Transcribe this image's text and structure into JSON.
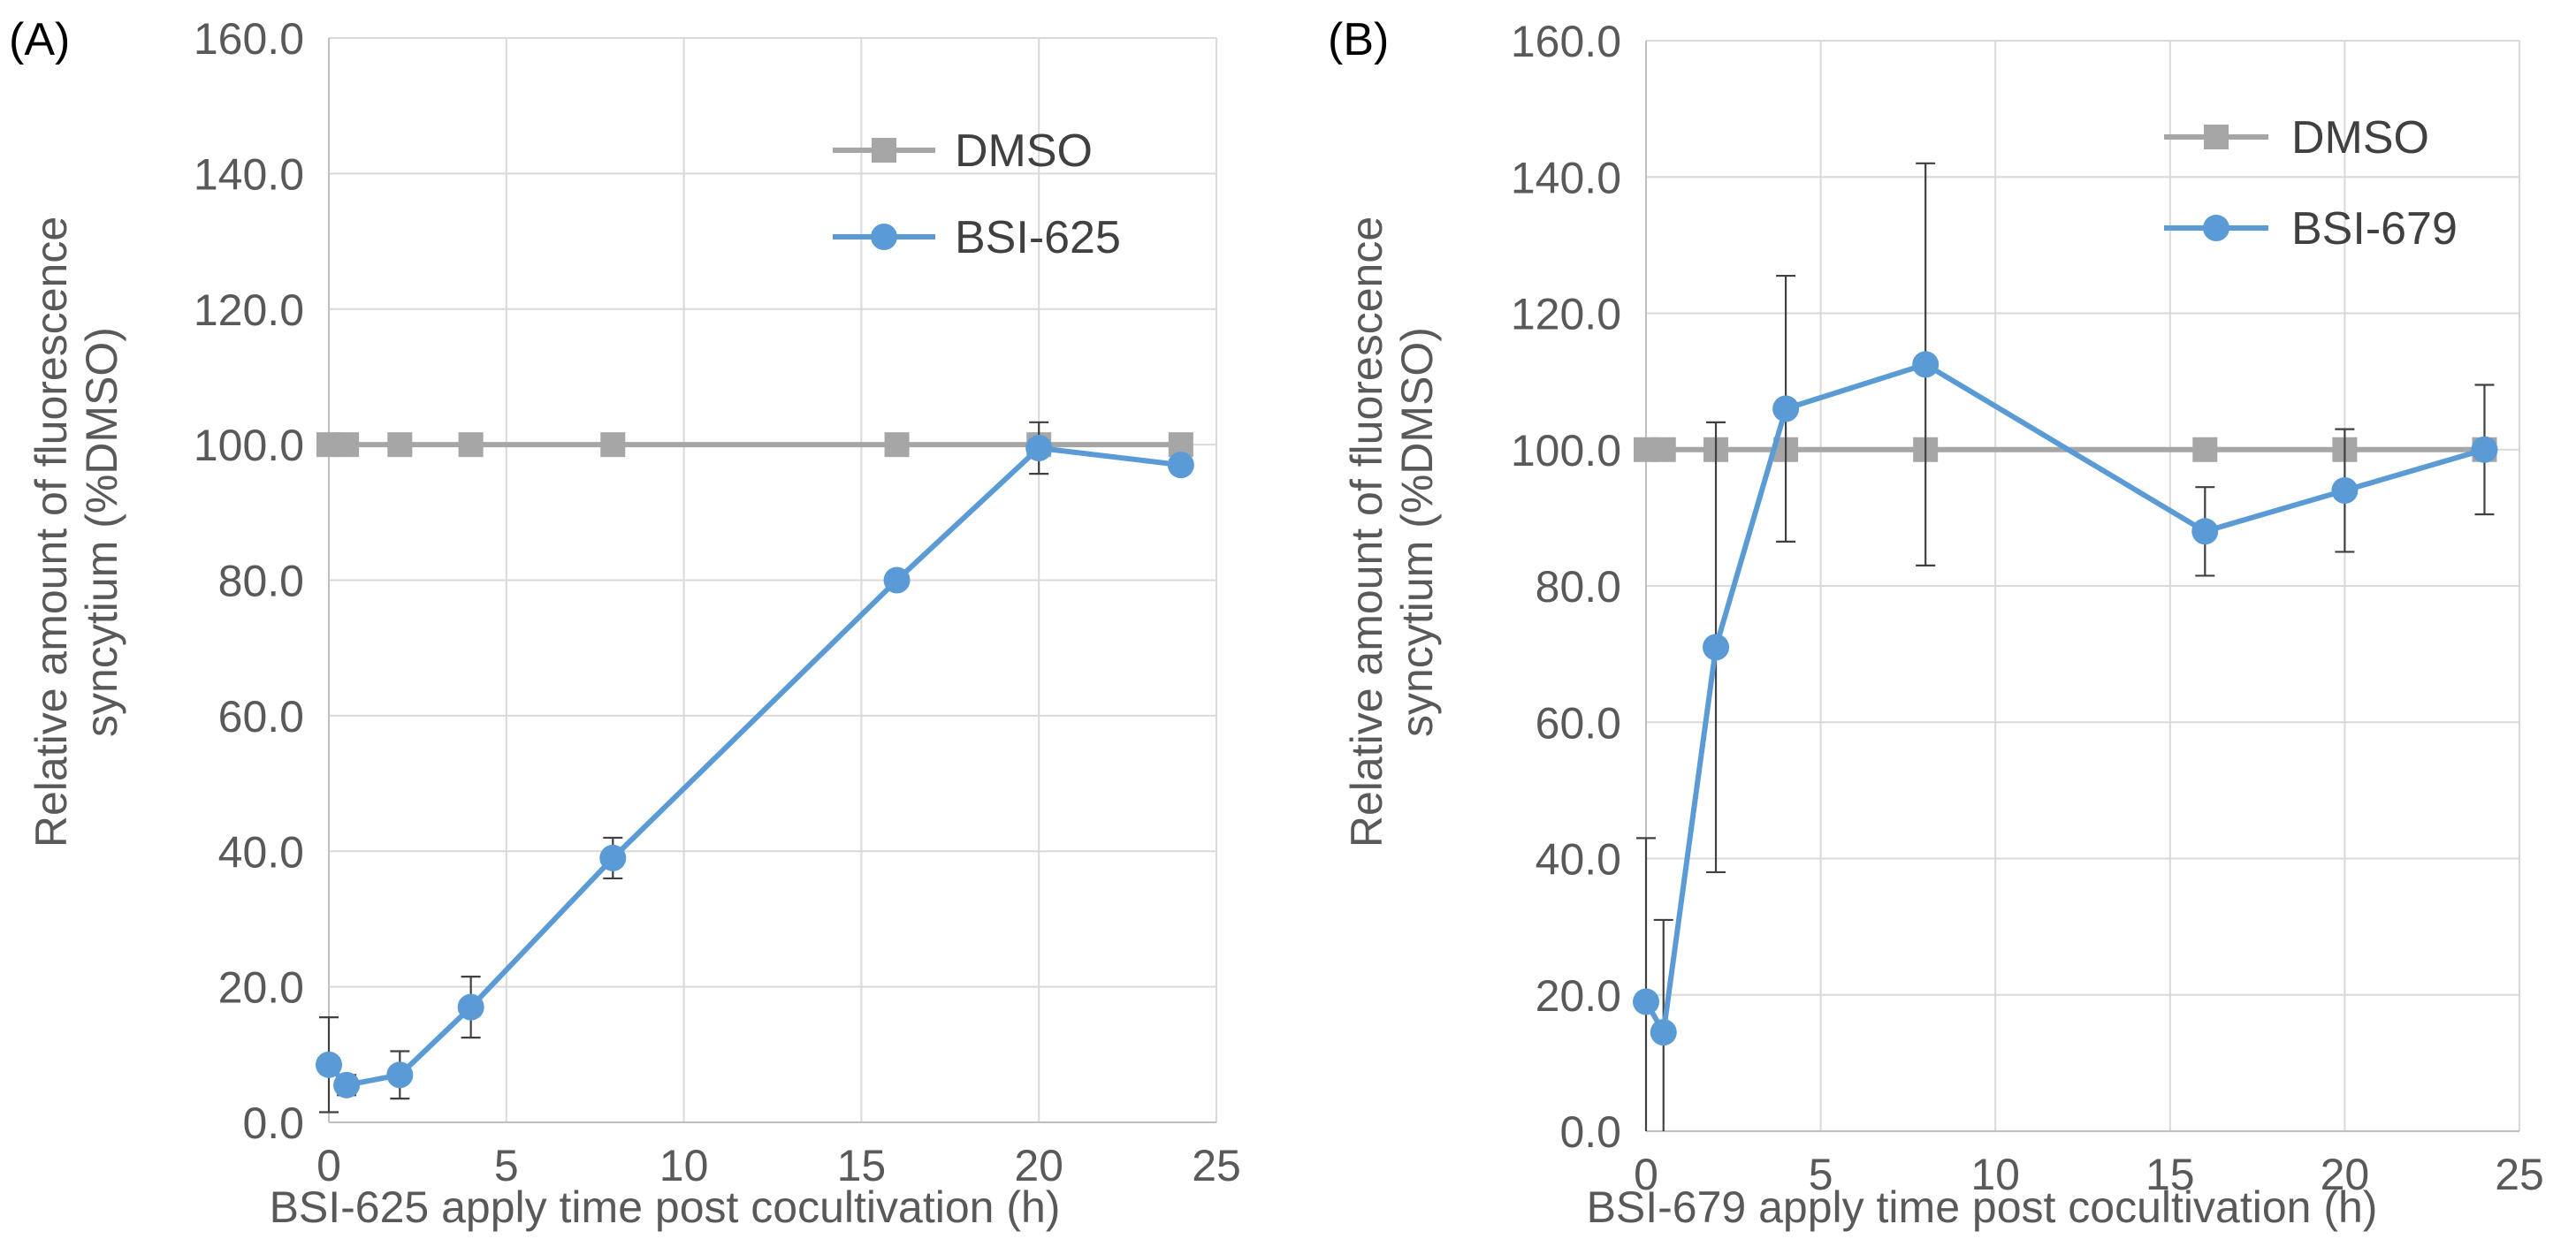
{
  "chart_data": [
    {
      "type": "line",
      "panel_label": "(A)",
      "xlabel": "BSI-625 apply time post cocultivation (h)",
      "ylabel_lines": [
        "Relative amount of fluorescence",
        "syncytium  (%DMSO)"
      ],
      "xlim": [
        0,
        25
      ],
      "ylim": [
        0,
        160
      ],
      "x_ticks": [
        "0",
        "5",
        "10",
        "15",
        "20",
        "25"
      ],
      "y_ticks": [
        "0.0",
        "20.0",
        "40.0",
        "60.0",
        "80.0",
        "100.0",
        "120.0",
        "140.0",
        "160.0"
      ],
      "grid": true,
      "legend_position": "top-right",
      "series": [
        {
          "name": "DMSO",
          "marker": "square",
          "color": "#a6a6a6",
          "x": [
            0,
            0.5,
            2,
            4,
            8,
            16,
            20,
            24
          ],
          "y": [
            100,
            100,
            100,
            100,
            100,
            100,
            100,
            100
          ]
        },
        {
          "name": "BSI-625",
          "marker": "circle",
          "color": "#5b9bd5",
          "x": [
            0,
            0.5,
            2,
            4,
            8,
            16,
            20,
            24
          ],
          "y": [
            8.5,
            5.5,
            7.0,
            17.0,
            39.0,
            80.0,
            99.5,
            97.0
          ],
          "err": [
            7.0,
            1.5,
            3.5,
            4.5,
            3.0,
            0,
            3.8,
            0
          ]
        }
      ]
    },
    {
      "type": "line",
      "panel_label": "(B)",
      "xlabel": "BSI-679 apply time post cocultivation (h)",
      "ylabel_lines": [
        "Relative amount of fluorescence",
        "syncytium  (%DMSO)"
      ],
      "xlim": [
        0,
        25
      ],
      "ylim": [
        0,
        160
      ],
      "x_ticks": [
        "0",
        "5",
        "10",
        "15",
        "20",
        "25"
      ],
      "y_ticks": [
        "0.0",
        "20.0",
        "40.0",
        "60.0",
        "80.0",
        "100.0",
        "120.0",
        "140.0",
        "160.0"
      ],
      "grid": true,
      "legend_position": "top-right",
      "series": [
        {
          "name": "DMSO",
          "marker": "square",
          "color": "#a6a6a6",
          "x": [
            0,
            0.5,
            2,
            4,
            8,
            16,
            20,
            24
          ],
          "y": [
            100,
            100,
            100,
            100,
            100,
            100,
            100,
            100
          ]
        },
        {
          "name": "BSI-679",
          "marker": "circle",
          "color": "#5b9bd5",
          "x": [
            0,
            0.5,
            2,
            4,
            8,
            16,
            20,
            24
          ],
          "y": [
            19.0,
            14.5,
            71.0,
            106.0,
            112.5,
            88.0,
            94.0,
            100.0
          ],
          "err": [
            24.0,
            16.5,
            33.0,
            19.5,
            29.5,
            6.5,
            9.0,
            9.5
          ]
        }
      ]
    }
  ]
}
